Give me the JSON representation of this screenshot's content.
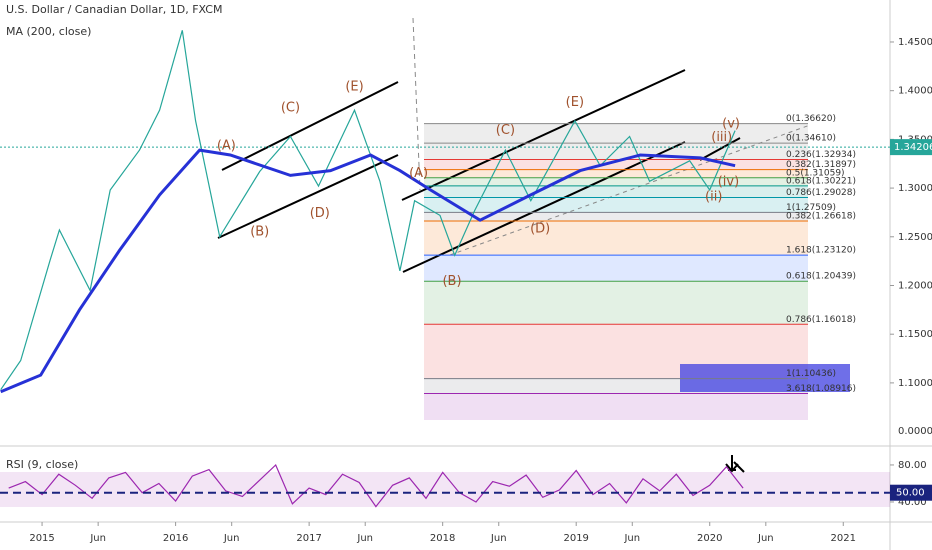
{
  "chart_data": [
    {
      "type": "line",
      "title": "U.S. Dollar / Canadian Dollar, 1D, FXCM",
      "x": [
        2014.69,
        2014.84,
        2015.06,
        2015.13,
        2015.36,
        2015.51,
        2015.73,
        2015.88,
        2016.05,
        2016.15,
        2016.33,
        2016.63,
        2016.86,
        2017.07,
        2017.34,
        2017.53,
        2017.68,
        2017.79,
        2017.98,
        2018.09,
        2018.24,
        2018.47,
        2018.66,
        2018.99,
        2019.18,
        2019.4,
        2019.55,
        2019.85,
        2020.0,
        2020.19
      ],
      "series": [
        {
          "color": "#26a69a",
          "values": [
            1.093,
            1.123,
            1.226,
            1.257,
            1.195,
            1.298,
            1.339,
            1.38,
            1.462,
            1.369,
            1.25,
            1.317,
            1.353,
            1.302,
            1.38,
            1.307,
            1.215,
            1.287,
            1.272,
            1.231,
            1.277,
            1.339,
            1.287,
            1.369,
            1.323,
            1.353,
            1.307,
            1.328,
            1.298,
            1.359
          ]
        }
      ],
      "ma": {
        "name": "MA (200, close)",
        "color": "#2631d6",
        "x": [
          2014.69,
          2014.99,
          2015.28,
          2015.58,
          2015.88,
          2016.18,
          2016.41,
          2016.86,
          2017.16,
          2017.46,
          2017.68,
          2017.91,
          2018.28,
          2018.66,
          2019.03,
          2019.48,
          2019.93,
          2020.19
        ],
        "values": [
          1.091,
          1.108,
          1.175,
          1.236,
          1.293,
          1.339,
          1.334,
          1.313,
          1.318,
          1.334,
          1.318,
          1.298,
          1.267,
          1.293,
          1.318,
          1.334,
          1.331,
          1.323
        ]
      },
      "last_price": {
        "value": 1.34206,
        "label": "1.34206"
      },
      "scale_label": "0.00000",
      "xlim": [
        2014.685,
        2021.35
      ],
      "ylim": [
        1.0619,
        1.4931
      ],
      "yticks": [
        {
          "value": 1.45,
          "label": "1.45000"
        },
        {
          "value": 1.4,
          "label": "1.40000"
        },
        {
          "value": 1.35,
          "label": "1.35000"
        },
        {
          "value": 1.3,
          "label": "1.30000"
        },
        {
          "value": 1.25,
          "label": "1.25000"
        },
        {
          "value": 1.2,
          "label": "1.20000"
        },
        {
          "value": 1.15,
          "label": "1.15000"
        },
        {
          "value": 1.1,
          "label": "1.10000"
        }
      ],
      "fib_levels": [
        {
          "value": 1.3662,
          "label": "0(1.36620)",
          "color": "#888888"
        },
        {
          "value": 1.3461,
          "label": "0(1.34610)",
          "color": "#888888"
        },
        {
          "value": 1.32934,
          "label": "0.236(1.32934)",
          "color": "#e53935"
        },
        {
          "value": 1.31897,
          "label": "0.382(1.31897)",
          "color": "#ef6c00"
        },
        {
          "value": 1.31059,
          "label": "0.5(1.31059)",
          "color": "#43a047"
        },
        {
          "value": 1.30221,
          "label": "0.618(1.30221)",
          "color": "#009688"
        },
        {
          "value": 1.29028,
          "label": "0.786(1.29028)",
          "color": "#0097a7"
        },
        {
          "value": 1.27509,
          "label": "1(1.27509)",
          "color": "#787b86"
        },
        {
          "value": 1.26618,
          "label": "0.382(1.26618)",
          "color": "#ef6c00"
        },
        {
          "value": 1.2312,
          "label": "1.618(1.23120)",
          "color": "#2962ff"
        },
        {
          "value": 1.20439,
          "label": "0.618(1.20439)",
          "color": "#43a047"
        },
        {
          "value": 1.16018,
          "label": "0.786(1.16018)",
          "color": "#e53935"
        },
        {
          "value": 1.10436,
          "label": "1(1.10436)",
          "color": "#787b86"
        },
        {
          "value": 1.08916,
          "label": "3.618(1.08916)",
          "color": "#9c27b0"
        }
      ],
      "annotations": [
        {
          "text": "(A)",
          "x": 2016.38,
          "y": 1.343
        },
        {
          "text": "(B)",
          "x": 2016.63,
          "y": 1.255
        },
        {
          "text": "(C)",
          "x": 2016.86,
          "y": 1.382
        },
        {
          "text": "(D)",
          "x": 2017.08,
          "y": 1.274
        },
        {
          "text": "(E)",
          "x": 2017.34,
          "y": 1.404
        },
        {
          "text": "(A)",
          "x": 2017.82,
          "y": 1.315
        },
        {
          "text": "(B)",
          "x": 2018.07,
          "y": 1.204
        },
        {
          "text": "(C)",
          "x": 2018.47,
          "y": 1.359
        },
        {
          "text": "(D)",
          "x": 2018.73,
          "y": 1.258
        },
        {
          "text": "(E)",
          "x": 2018.99,
          "y": 1.388
        },
        {
          "text": "(iii)",
          "x": 2020.09,
          "y": 1.352
        },
        {
          "text": "(v)",
          "x": 2020.16,
          "y": 1.366
        },
        {
          "text": "(iv)",
          "x": 2020.14,
          "y": 1.306
        },
        {
          "text": "(ii)",
          "x": 2020.03,
          "y": 1.291
        }
      ]
    },
    {
      "type": "line",
      "title": "RSI (9, close)",
      "x": [
        2014.75,
        2014.875,
        2015,
        2015.125,
        2015.25,
        2015.375,
        2015.5,
        2015.625,
        2015.75,
        2015.875,
        2016,
        2016.125,
        2016.25,
        2016.375,
        2016.5,
        2016.625,
        2016.75,
        2016.875,
        2017,
        2017.125,
        2017.25,
        2017.375,
        2017.5,
        2017.625,
        2017.75,
        2017.875,
        2018,
        2018.125,
        2018.25,
        2018.375,
        2018.5,
        2018.625,
        2018.75,
        2018.875,
        2019,
        2019.125,
        2019.25,
        2019.375,
        2019.5,
        2019.625,
        2019.75,
        2019.875,
        2020,
        2020.125,
        2020.25
      ],
      "series": [
        {
          "color": "#9c27b0",
          "values": [
            55,
            62,
            48,
            70,
            58,
            44,
            66,
            72,
            50,
            60,
            41,
            68,
            75,
            52,
            46,
            63,
            80,
            38,
            55,
            48,
            70,
            61,
            35,
            58,
            66,
            44,
            72,
            50,
            40,
            62,
            57,
            69,
            45,
            53,
            74,
            48,
            60,
            39,
            65,
            52,
            70,
            47,
            58,
            78,
            55
          ]
        }
      ],
      "level": {
        "value": 50,
        "label": "50.00"
      },
      "xlim": [
        2014.685,
        2021.35
      ],
      "ylim": [
        20.5,
        94
      ],
      "yticks": [
        {
          "value": 80,
          "label": "80.00"
        },
        {
          "value": 40,
          "label": "40.00"
        }
      ],
      "xticks": [
        {
          "value": 2015,
          "label": "2015"
        },
        {
          "value": 2015.42,
          "label": "Jun"
        },
        {
          "value": 2016,
          "label": "2016"
        },
        {
          "value": 2016.42,
          "label": "Jun"
        },
        {
          "value": 2017,
          "label": "2017"
        },
        {
          "value": 2017.42,
          "label": "Jun"
        },
        {
          "value": 2018,
          "label": "2018"
        },
        {
          "value": 2018.42,
          "label": "Jun"
        },
        {
          "value": 2019,
          "label": "2019"
        },
        {
          "value": 2019.42,
          "label": "Jun"
        },
        {
          "value": 2020,
          "label": "2020"
        },
        {
          "value": 2020.42,
          "label": "Jun"
        },
        {
          "value": 2021,
          "label": "2021"
        }
      ]
    }
  ]
}
